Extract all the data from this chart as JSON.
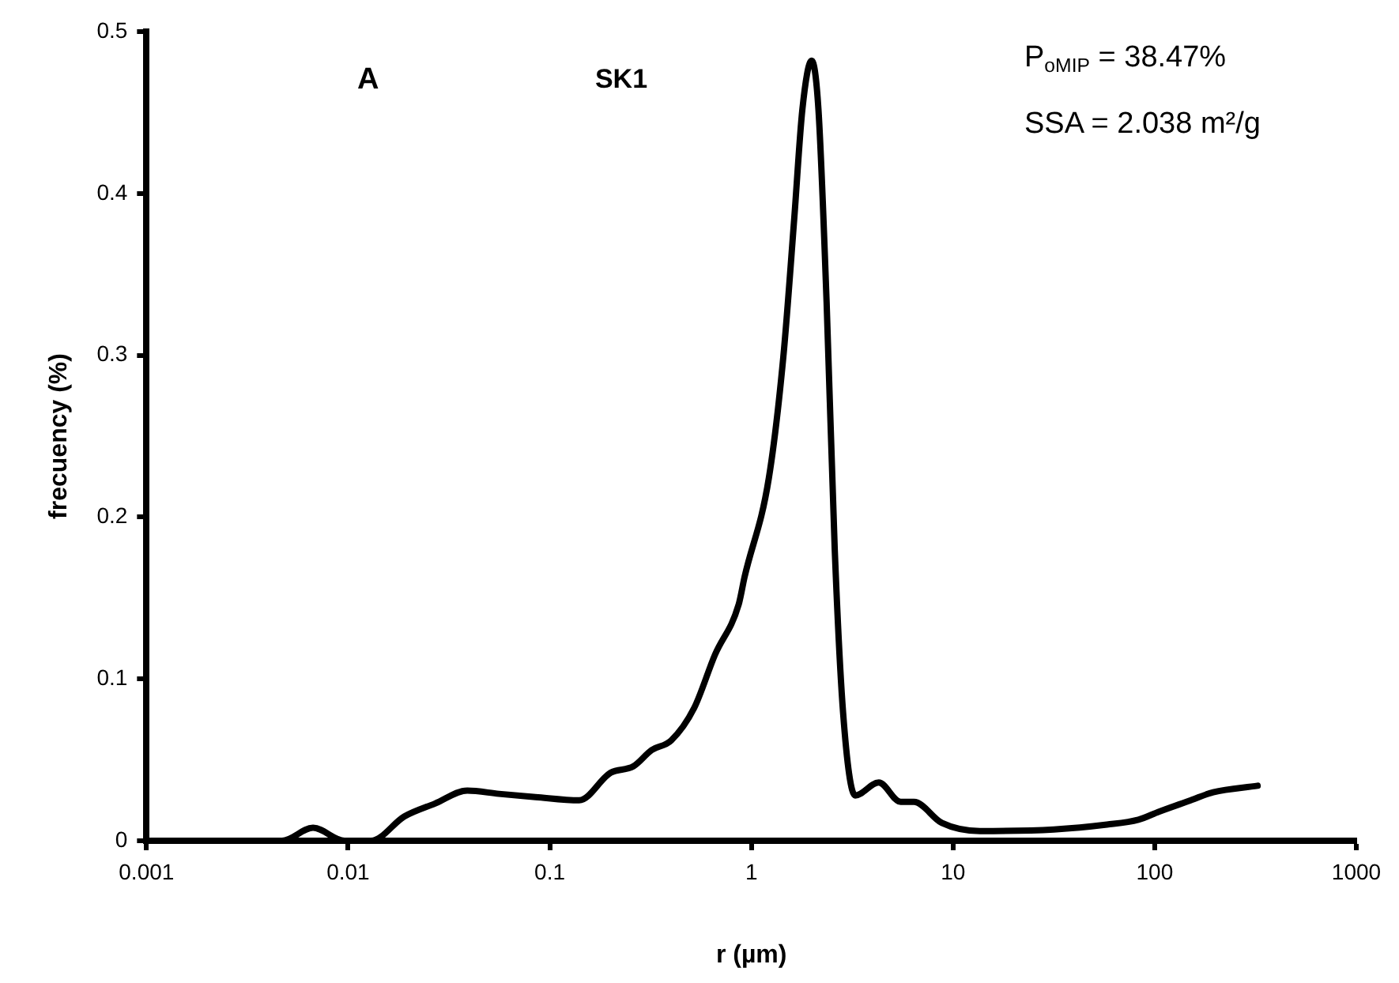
{
  "chart_data": {
    "type": "line",
    "title": "SK1",
    "xlabel": "r (µm)",
    "ylabel": "frecuency (%)",
    "annotations": [
      "A",
      "P$_{oMIP}$ = 38.47%",
      "SSA = 2.038 m²/g"
    ],
    "log": "x",
    "xlim": [
      0.001,
      1000
    ],
    "xticks": [
      0.001,
      0.01,
      0.1,
      1,
      10,
      100,
      1000
    ],
    "ylim": [
      0,
      0.5
    ],
    "yticks": [
      0,
      0.1,
      0.2,
      0.3,
      0.4,
      0.5
    ],
    "grid": false,
    "legend": false,
    "marker": "none",
    "line_style": "solid",
    "series": [
      {
        "color": "#000000",
        "x": [
          0.0027,
          0.0047,
          0.0067,
          0.0096,
          0.013,
          0.019,
          0.027,
          0.039,
          0.056,
          0.085,
          0.14,
          0.2,
          0.26,
          0.32,
          0.4,
          0.52,
          0.66,
          0.865,
          0.925,
          1.22,
          1.44,
          1.63,
          1.79,
          1.99,
          2.15,
          2.36,
          2.59,
          2.85,
          3.27,
          4.28,
          5.5,
          6.4,
          8.8,
          13.6,
          31.6,
          58,
          83,
          105,
          151,
          195,
          324
        ],
        "values": [
          0,
          0,
          0.008,
          0,
          0,
          0.015,
          0.023,
          0.031,
          0.029,
          0.027,
          0.025,
          0.042,
          0.046,
          0.056,
          0.062,
          0.082,
          0.115,
          0.146,
          0.163,
          0.224,
          0.299,
          0.384,
          0.452,
          0.482,
          0.452,
          0.333,
          0.18,
          0.079,
          0.028,
          0.036,
          0.024,
          0.024,
          0.011,
          0.006,
          0.007,
          0.01,
          0.013,
          0.018,
          0.025,
          0.03,
          0.034
        ]
      }
    ]
  }
}
